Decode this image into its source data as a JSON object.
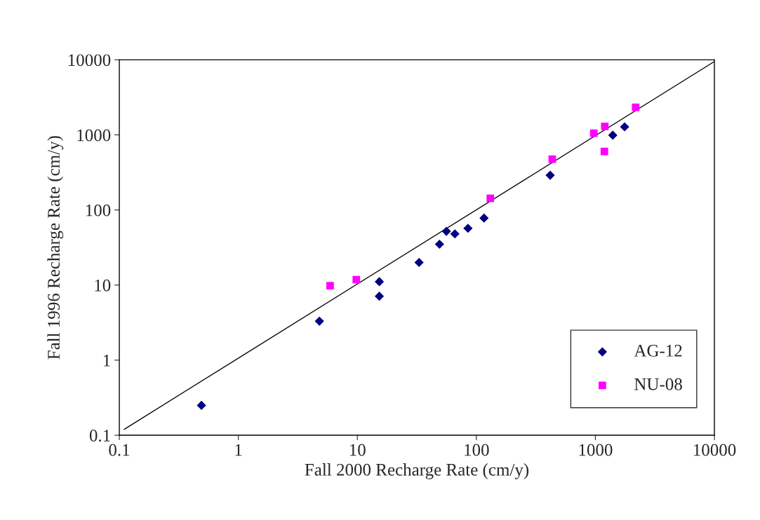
{
  "chart_data": {
    "type": "scatter",
    "xlabel": "Fall 2000 Recharge Rate (cm/y)",
    "ylabel": "Fall 1996 Recharge Rate (cm/y)",
    "log": "xy",
    "xlim": [
      0.1,
      10000
    ],
    "ylim": [
      0.1,
      10000
    ],
    "xticks": [
      0.1,
      1,
      10,
      100,
      1000,
      10000
    ],
    "yticks": [
      0.1,
      1,
      10,
      100,
      1000,
      10000
    ],
    "grid": false,
    "legend": "bottom right",
    "series": [
      {
        "name": "AG-12",
        "color": "#000080",
        "marker": "diamond",
        "x": [
          0.49,
          4.8,
          15.3,
          15.3,
          33,
          49,
          56,
          66,
          85,
          116,
          417,
          1400,
          1760
        ],
        "values": [
          0.25,
          3.3,
          7.1,
          11.1,
          20,
          35,
          52,
          48,
          57,
          78,
          290,
          990,
          1280
        ]
      },
      {
        "name": "NU-08",
        "color": "#ff00ff",
        "marker": "square",
        "x": [
          5.9,
          9.8,
          131,
          434,
          970,
          1200,
          1190,
          2180
        ],
        "values": [
          9.8,
          11.8,
          143,
          475,
          1050,
          1300,
          600,
          2330
        ]
      },
      {
        "type": "line",
        "color": "#000000",
        "marker": "none",
        "x": [
          0.11,
          10000
        ],
        "values": [
          0.12,
          9500
        ]
      }
    ]
  }
}
